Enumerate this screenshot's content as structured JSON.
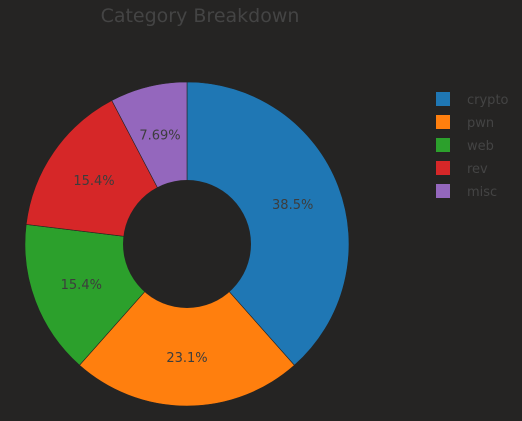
{
  "chart_data": {
    "type": "pie",
    "hole": true,
    "title": "Category Breakdown",
    "categories": [
      "crypto",
      "pwn",
      "web",
      "rev",
      "misc"
    ],
    "values": [
      38.5,
      23.1,
      15.4,
      15.4,
      7.69
    ],
    "labels": [
      "38.5%",
      "23.1%",
      "15.4%",
      "15.4%",
      "7.69%"
    ],
    "colors": [
      "#1f77b4",
      "#ff7f0e",
      "#2ca02c",
      "#d62728",
      "#9467bd"
    ],
    "direction": "clockwise",
    "start": "top",
    "legend": {
      "placement": "top-right",
      "entries": [
        "crypto",
        "pwn",
        "web",
        "rev",
        "misc"
      ]
    }
  }
}
